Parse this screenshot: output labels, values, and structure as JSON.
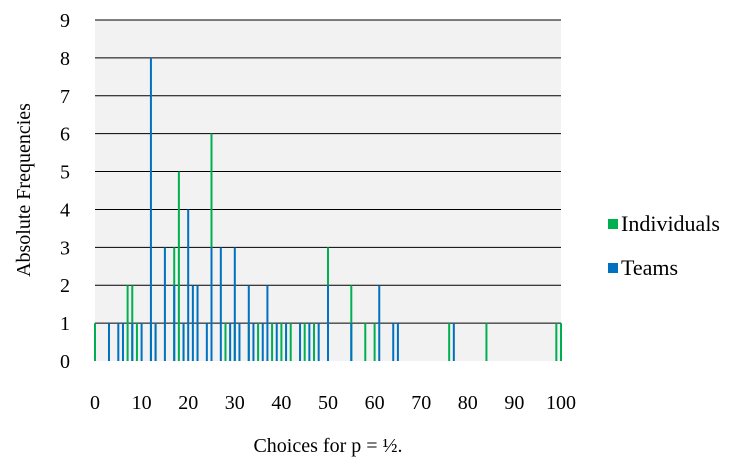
{
  "chart_data": {
    "type": "bar",
    "xlabel": "Choices for p = ½.",
    "ylabel": "Absolute Frequencies",
    "xlim": [
      0,
      100
    ],
    "ylim": [
      0,
      9
    ],
    "x_ticks": [
      0,
      10,
      20,
      30,
      40,
      50,
      60,
      70,
      80,
      90,
      100
    ],
    "y_ticks": [
      0,
      1,
      2,
      3,
      4,
      5,
      6,
      7,
      8,
      9
    ],
    "grid": true,
    "legend_position": "right",
    "series": [
      {
        "name": "Individuals",
        "color": "#00b050",
        "points": [
          [
            0,
            1
          ],
          [
            7,
            2
          ],
          [
            8,
            2
          ],
          [
            9,
            1
          ],
          [
            12,
            1
          ],
          [
            13,
            1
          ],
          [
            17,
            3
          ],
          [
            18,
            5
          ],
          [
            19,
            1
          ],
          [
            22,
            1
          ],
          [
            25,
            6
          ],
          [
            28,
            1
          ],
          [
            30,
            1
          ],
          [
            33,
            1
          ],
          [
            35,
            1
          ],
          [
            38,
            1
          ],
          [
            40,
            1
          ],
          [
            42,
            1
          ],
          [
            45,
            1
          ],
          [
            47,
            1
          ],
          [
            50,
            3
          ],
          [
            55,
            2
          ],
          [
            58,
            1
          ],
          [
            60,
            1
          ],
          [
            76,
            1
          ],
          [
            84,
            1
          ],
          [
            99,
            1
          ],
          [
            100,
            1
          ]
        ]
      },
      {
        "name": "Teams",
        "color": "#0070c0",
        "points": [
          [
            3,
            1
          ],
          [
            5,
            1
          ],
          [
            6,
            1
          ],
          [
            8,
            1
          ],
          [
            10,
            1
          ],
          [
            12,
            8
          ],
          [
            13,
            1
          ],
          [
            15,
            3
          ],
          [
            17,
            2
          ],
          [
            19,
            1
          ],
          [
            20,
            4
          ],
          [
            21,
            2
          ],
          [
            22,
            2
          ],
          [
            24,
            1
          ],
          [
            25,
            3
          ],
          [
            27,
            3
          ],
          [
            29,
            1
          ],
          [
            30,
            3
          ],
          [
            31,
            1
          ],
          [
            33,
            2
          ],
          [
            34,
            1
          ],
          [
            36,
            1
          ],
          [
            37,
            2
          ],
          [
            39,
            1
          ],
          [
            41,
            1
          ],
          [
            44,
            1
          ],
          [
            46,
            1
          ],
          [
            48,
            1
          ],
          [
            50,
            2
          ],
          [
            55,
            1
          ],
          [
            61,
            2
          ],
          [
            64,
            1
          ],
          [
            65,
            1
          ],
          [
            77,
            1
          ]
        ]
      }
    ]
  },
  "colors": {
    "plot_background": "#f2f2f2",
    "gridline": "#000000"
  }
}
